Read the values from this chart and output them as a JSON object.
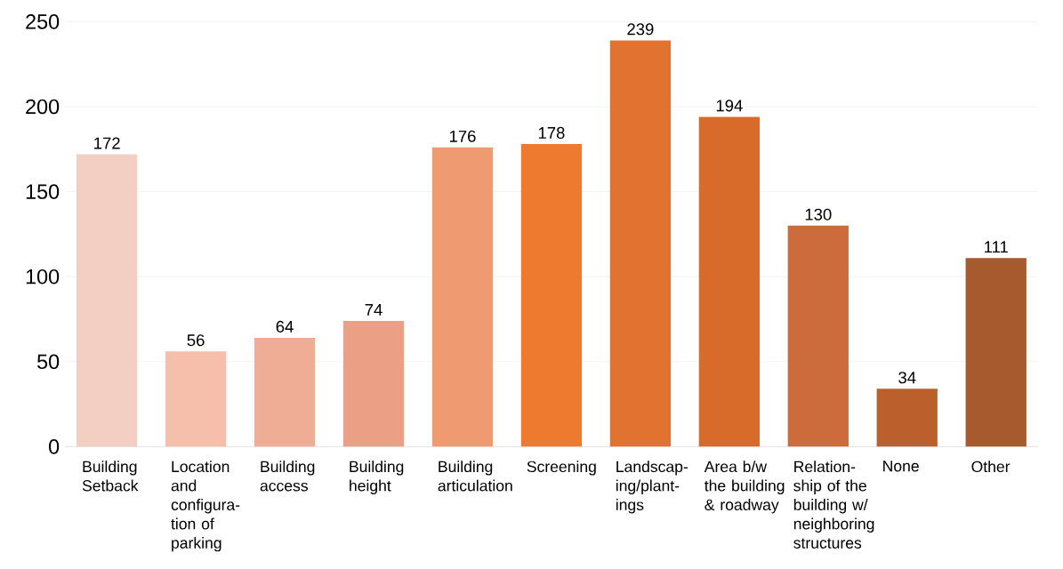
{
  "chart_data": {
    "type": "bar",
    "categories": [
      "Building Setback",
      "Location and configura-tion of parking",
      "Building access",
      "Building height",
      "Building articulation",
      "Screening",
      "Landscap-ing/plant-ings",
      "Area b/w the building & roadway",
      "Relation-ship of the building w/ neighboring structures",
      "None",
      "Other"
    ],
    "values": [
      172,
      56,
      64,
      74,
      176,
      178,
      239,
      194,
      130,
      34,
      111
    ],
    "colors": [
      "#f3cfc3",
      "#f5bfab",
      "#efad96",
      "#eba086",
      "#ef9a70",
      "#ee7a30",
      "#e27230",
      "#d86a2a",
      "#cc6c3c",
      "#bb602c",
      "#a65a2e"
    ],
    "ylim": [
      0,
      250
    ],
    "yticks": [
      0,
      50,
      100,
      150,
      200,
      250
    ],
    "grid": "y",
    "data_labels": true
  }
}
